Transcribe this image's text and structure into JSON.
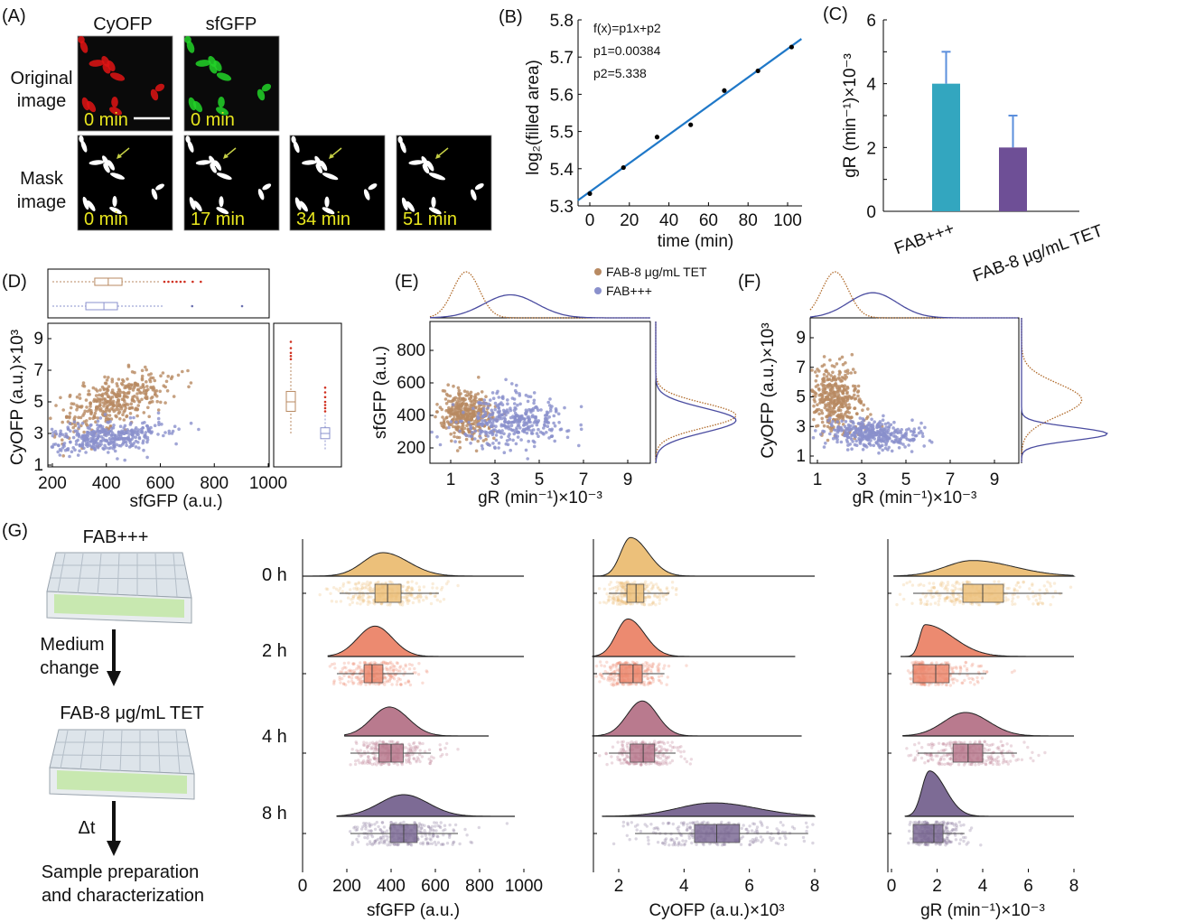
{
  "panel_labels": {
    "a": "(A)",
    "b": "(B)",
    "c": "(C)",
    "d": "(D)",
    "e": "(E)",
    "f": "(F)",
    "g": "(G)"
  },
  "panel_a": {
    "column_labels": [
      "CyOFP",
      "sfGFP"
    ],
    "row_labels": [
      [
        "Original",
        "image"
      ],
      [
        "Mask",
        "image"
      ]
    ],
    "original_times": [
      "0 min",
      "0 min"
    ],
    "mask_times": [
      "0 min",
      "17 min",
      "34 min",
      "51 min"
    ],
    "colors": {
      "cyofp": "#e01414",
      "sfgfp": "#22d428",
      "time_label": "#e8e61e",
      "arrow": "#c5cf45",
      "mask": "#ffffff",
      "background": "#000000"
    }
  },
  "legend": {
    "items": [
      {
        "label": "FAB-8 μg/mL TET",
        "color": "#b88a62"
      },
      {
        "label": "FAB+++",
        "color": "#8a90cc"
      }
    ]
  },
  "schematic": {
    "top_condition": "FAB+++",
    "step1": [
      "Medium",
      "change"
    ],
    "bottom_condition": "FAB-8 μg/mL TET",
    "step2": "Δt",
    "final": [
      "Sample preparation",
      "and characterization"
    ]
  },
  "chart_data": [
    {
      "panel": "B",
      "type": "scatter",
      "x": [
        0,
        17,
        34,
        51,
        68,
        85,
        102
      ],
      "y": [
        5.333,
        5.403,
        5.485,
        5.518,
        5.61,
        5.663,
        5.727
      ],
      "fit": {
        "p1": 0.00384,
        "p2": 5.338
      },
      "annotations": [
        "f(x)=p1x+p2",
        "p1=0.00384",
        "p2=5.338"
      ],
      "xlabel": "time (min)",
      "ylabel": "log₂(filled area)",
      "xticks": [
        0,
        20,
        40,
        60,
        80,
        100
      ],
      "yticks": [
        5.3,
        5.4,
        5.5,
        5.6,
        5.7,
        5.8
      ],
      "xlim": [
        -6,
        108
      ],
      "ylim": [
        5.3,
        5.8
      ],
      "colors": {
        "points": "#000000",
        "fit": "#1f78c8"
      }
    },
    {
      "panel": "C",
      "type": "bar",
      "categories": [
        "FAB+++",
        "FAB-8 μg/mL TET"
      ],
      "values": [
        4,
        2
      ],
      "errors": [
        1,
        1
      ],
      "ylabel": "gR (min⁻¹)×10⁻³",
      "yticks": [
        0,
        2,
        4,
        6
      ],
      "ylim": [
        0,
        6
      ],
      "colors": [
        "#33a6bf",
        "#6e4f96"
      ],
      "error_color": "#5b8fdc"
    },
    {
      "panel": "D",
      "type": "scatter",
      "xlabel": "sfGFP (a.u.)",
      "ylabel": "CyOFP (a.u.)×10³",
      "xticks": [
        200,
        400,
        600,
        800,
        1000
      ],
      "yticks": [
        1,
        3,
        5,
        7,
        9
      ],
      "xlim": [
        180,
        1010
      ],
      "ylim": [
        1,
        10
      ],
      "groups": [
        {
          "name": "FAB-8 μg/mL TET",
          "color": "#b88a62",
          "x_mean": 430,
          "x_sd": 100,
          "y_mean": 5.0,
          "y_sd": 1.0,
          "corr": 0.6,
          "box_x": {
            "q1": 357,
            "median": 407,
            "q3": 458,
            "whisker_low": 200,
            "whisker_high": 600,
            "outliers": [
              615,
              630,
              645,
              660,
              675,
              690,
              720,
              750
            ]
          },
          "box_y": {
            "q1": 4.4,
            "median": 5.0,
            "q3": 5.66,
            "whisker_low": 3.0,
            "whisker_high": 7.5,
            "outliers": [
              7.7,
              7.9,
              8.1,
              8.4,
              8.8
            ]
          }
        },
        {
          "name": "FAB+++",
          "color": "#8a90cc",
          "x_mean": 390,
          "x_sd": 110,
          "y_mean": 2.8,
          "y_sd": 0.5,
          "corr": 0.3,
          "box_x": {
            "q1": 324,
            "median": 391,
            "q3": 441,
            "whisker_low": 200,
            "whisker_high": 610,
            "outliers": [
              718,
              903
            ]
          },
          "box_y": {
            "q1": 2.67,
            "median": 3.0,
            "q3": 3.36,
            "whisker_low": 2.0,
            "whisker_high": 4.2,
            "outliers": [
              4.4,
              4.6,
              4.8,
              5.0,
              5.3,
              5.6,
              5.9
            ]
          }
        }
      ]
    },
    {
      "panel": "E",
      "type": "scatter",
      "xlabel": "gR (min⁻¹)×10⁻³",
      "ylabel": "sfGFP (a.u.)",
      "xticks": [
        1,
        3,
        5,
        7,
        9
      ],
      "yticks": [
        200,
        400,
        600,
        800
      ],
      "xlim": [
        0.06,
        10
      ],
      "ylim": [
        106,
        978
      ],
      "groups": [
        {
          "name": "FAB-8 μg/mL TET",
          "color": "#b88a62",
          "x_mean": 1.7,
          "x_sd": 0.6,
          "y_mean": 400,
          "y_sd": 75,
          "corr": 0.0
        },
        {
          "name": "FAB+++",
          "color": "#8a90cc",
          "x_mean": 3.7,
          "x_sd": 1.2,
          "y_mean": 370,
          "y_sd": 75,
          "corr": 0.0
        }
      ]
    },
    {
      "panel": "F",
      "type": "scatter",
      "xlabel": "gR (min⁻¹)×10⁻³",
      "ylabel": "CyOFP (a.u.)×10³",
      "xticks": [
        1,
        3,
        5,
        7,
        9
      ],
      "yticks": [
        1,
        3,
        5,
        7,
        9
      ],
      "xlim": [
        0.67,
        10.1
      ],
      "ylim": [
        0.5,
        10.3
      ],
      "groups": [
        {
          "name": "FAB-8 μg/mL TET",
          "color": "#b88a62",
          "x_mean": 1.8,
          "x_sd": 0.6,
          "y_mean": 4.8,
          "y_sd": 1.1,
          "corr": -0.3
        },
        {
          "name": "FAB+++",
          "color": "#8a90cc",
          "x_mean": 3.5,
          "x_sd": 1.1,
          "y_mean": 2.5,
          "y_sd": 0.45,
          "corr": -0.2
        }
      ]
    },
    {
      "panel": "G",
      "type": "raincloud",
      "rows": [
        "0 h",
        "2 h",
        "4 h",
        "8 h"
      ],
      "row_colors": [
        "#ecc07a",
        "#ec8a70",
        "#b97a8e",
        "#7d6b95"
      ],
      "panels": [
        {
          "xlabel": "sfGFP (a.u.)",
          "xticks": [
            0,
            200,
            400,
            600,
            800,
            1000
          ],
          "xlim": [
            0,
            1000
          ],
          "stats": [
            {
              "median": 384,
              "q1": 327,
              "q3": 445,
              "whisker_low": 167,
              "whisker_high": 616,
              "mode": 363,
              "range": [
                0,
                1000
              ]
            },
            {
              "median": 314,
              "q1": 278,
              "q3": 363,
              "whisker_low": 155,
              "whisker_high": 502,
              "mode": 327,
              "range": [
                115,
                1000
              ]
            },
            {
              "median": 400,
              "q1": 345,
              "q3": 455,
              "whisker_low": 216,
              "whisker_high": 580,
              "mode": 392,
              "range": [
                190,
                841
              ]
            },
            {
              "median": 457,
              "q1": 396,
              "q3": 518,
              "whisker_low": 216,
              "whisker_high": 702,
              "mode": 457,
              "range": [
                155,
                959
              ]
            }
          ]
        },
        {
          "xlabel": "CyOFP (a.u.)×10³",
          "xticks": [
            2,
            4,
            6,
            8
          ],
          "xlim": [
            1.2,
            8
          ],
          "stats": [
            {
              "median": 2.53,
              "q1": 2.25,
              "q3": 2.77,
              "whisker_low": 1.7,
              "whisker_high": 3.55,
              "mode": 2.36,
              "range": [
                1.2,
                8
              ]
            },
            {
              "median": 2.44,
              "q1": 2.03,
              "q3": 2.72,
              "whisker_low": 1.5,
              "whisker_high": 3.4,
              "mode": 2.28,
              "range": [
                1.2,
                7.4
              ]
            },
            {
              "median": 2.75,
              "q1": 2.35,
              "q3": 3.1,
              "whisker_low": 1.7,
              "whisker_high": 3.74,
              "mode": 2.72,
              "range": [
                1.2,
                7.6
              ]
            },
            {
              "median": 5.0,
              "q1": 4.32,
              "q3": 5.7,
              "whisker_low": 2.5,
              "whisker_high": 7.8,
              "mode": 4.9,
              "range": [
                1.5,
                8
              ]
            }
          ]
        },
        {
          "xlabel": "gR (min⁻¹)×10⁻³",
          "xticks": [
            0,
            2,
            4,
            6,
            8
          ],
          "xlim": [
            0,
            8
          ],
          "stats": [
            {
              "median": 4.0,
              "q1": 3.13,
              "q3": 4.91,
              "whisker_low": 0.95,
              "whisker_high": 7.5,
              "mode": 3.56,
              "range": [
                0.1,
                8
              ]
            },
            {
              "median": 1.94,
              "q1": 0.95,
              "q3": 2.53,
              "whisker_low": 0.95,
              "whisker_high": 4.16,
              "mode": 1.47,
              "range": [
                0.4,
                8
              ]
            },
            {
              "median": 3.36,
              "q1": 2.7,
              "q3": 4.0,
              "whisker_low": 1.15,
              "whisker_high": 5.5,
              "mode": 3.25,
              "range": [
                0.5,
                8
              ]
            },
            {
              "median": 1.86,
              "q1": 0.95,
              "q3": 2.26,
              "whisker_low": 0.95,
              "whisker_high": 3.2,
              "mode": 1.66,
              "range": [
                0.6,
                8
              ]
            }
          ]
        }
      ]
    }
  ]
}
